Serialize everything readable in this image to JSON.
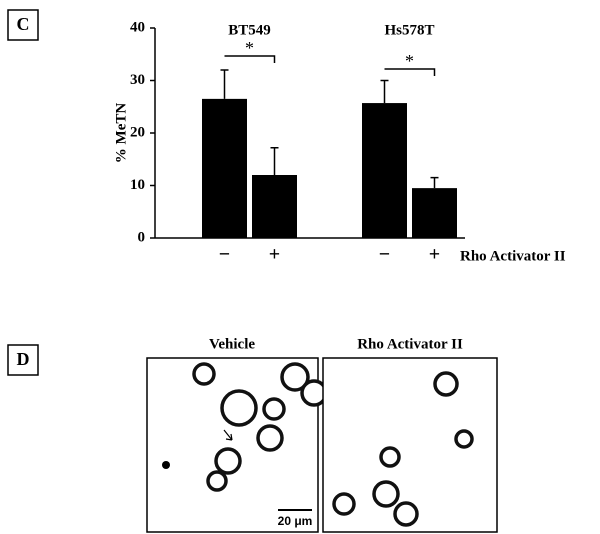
{
  "panels": {
    "c": {
      "label": "C"
    },
    "d": {
      "label": "D"
    }
  },
  "chart_data": {
    "type": "bar",
    "y_label": "% MeTN",
    "x_label": "Rho Activator II",
    "groups": [
      "BT549",
      "Hs578T"
    ],
    "categories": [
      "−",
      "+",
      "−",
      "+"
    ],
    "values": [
      26.5,
      12,
      25.7,
      9.5
    ],
    "errors": [
      5.5,
      5.2,
      4.3,
      2
    ],
    "color": "#000000",
    "ylim": [
      0,
      40
    ],
    "yticks": [
      0,
      10,
      20,
      30,
      40
    ],
    "annotations": [
      "*",
      "*"
    ]
  },
  "images": {
    "titles": [
      "Vehicle",
      "Rho Activator II"
    ],
    "scale_bar": "20 μm"
  }
}
